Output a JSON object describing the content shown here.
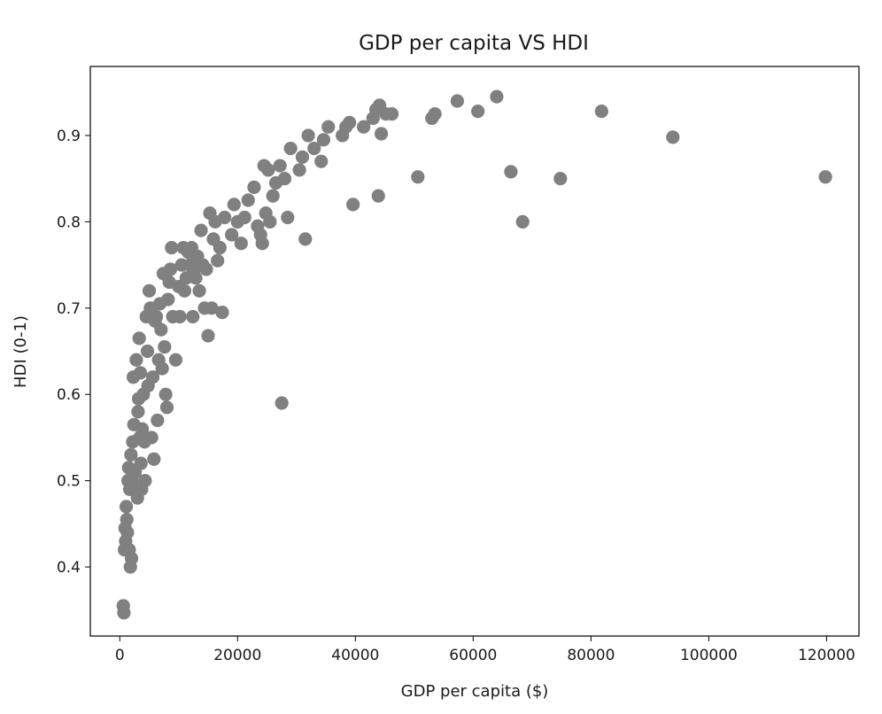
{
  "chart_data": {
    "type": "scatter",
    "title": "GDP per capita VS HDI",
    "xlabel": "GDP per capita ($)",
    "ylabel": "HDI (0-1)",
    "xlim": [
      -5000,
      125500
    ],
    "ylim": [
      0.32,
      0.98
    ],
    "xticks": [
      0,
      20000,
      40000,
      60000,
      80000,
      100000,
      120000
    ],
    "yticks": [
      0.4,
      0.5,
      0.6,
      0.7,
      0.8,
      0.9
    ],
    "marker_color": "#808080",
    "grid": false,
    "series": [
      {
        "points": [
          [
            600,
            0.355
          ],
          [
            700,
            0.347
          ],
          [
            800,
            0.42
          ],
          [
            900,
            0.445
          ],
          [
            1000,
            0.43
          ],
          [
            1100,
            0.47
          ],
          [
            1200,
            0.455
          ],
          [
            1300,
            0.44
          ],
          [
            1400,
            0.5
          ],
          [
            1500,
            0.515
          ],
          [
            1600,
            0.42
          ],
          [
            1700,
            0.49
          ],
          [
            1800,
            0.4
          ],
          [
            1900,
            0.53
          ],
          [
            2000,
            0.41
          ],
          [
            2100,
            0.5
          ],
          [
            2200,
            0.545
          ],
          [
            2300,
            0.62
          ],
          [
            2400,
            0.565
          ],
          [
            2600,
            0.51
          ],
          [
            2800,
            0.64
          ],
          [
            3000,
            0.48
          ],
          [
            3100,
            0.58
          ],
          [
            3200,
            0.595
          ],
          [
            3300,
            0.665
          ],
          [
            3400,
            0.55
          ],
          [
            3500,
            0.625
          ],
          [
            3600,
            0.52
          ],
          [
            3700,
            0.49
          ],
          [
            3800,
            0.56
          ],
          [
            4000,
            0.6
          ],
          [
            4200,
            0.545
          ],
          [
            4300,
            0.5
          ],
          [
            4500,
            0.69
          ],
          [
            4700,
            0.65
          ],
          [
            4800,
            0.61
          ],
          [
            5000,
            0.72
          ],
          [
            5200,
            0.7
          ],
          [
            5400,
            0.55
          ],
          [
            5600,
            0.62
          ],
          [
            5800,
            0.525
          ],
          [
            6000,
            0.685
          ],
          [
            6200,
            0.69
          ],
          [
            6400,
            0.57
          ],
          [
            6600,
            0.64
          ],
          [
            6800,
            0.705
          ],
          [
            7000,
            0.675
          ],
          [
            7200,
            0.63
          ],
          [
            7400,
            0.74
          ],
          [
            7600,
            0.655
          ],
          [
            7800,
            0.6
          ],
          [
            8000,
            0.585
          ],
          [
            8200,
            0.71
          ],
          [
            8400,
            0.73
          ],
          [
            8600,
            0.745
          ],
          [
            8800,
            0.77
          ],
          [
            9000,
            0.69
          ],
          [
            9500,
            0.64
          ],
          [
            10000,
            0.725
          ],
          [
            10200,
            0.69
          ],
          [
            10500,
            0.75
          ],
          [
            10800,
            0.77
          ],
          [
            11000,
            0.72
          ],
          [
            11300,
            0.735
          ],
          [
            11600,
            0.765
          ],
          [
            11900,
            0.75
          ],
          [
            12200,
            0.77
          ],
          [
            12400,
            0.69
          ],
          [
            12600,
            0.745
          ],
          [
            12900,
            0.735
          ],
          [
            13200,
            0.76
          ],
          [
            13500,
            0.72
          ],
          [
            13800,
            0.79
          ],
          [
            14100,
            0.75
          ],
          [
            14400,
            0.7
          ],
          [
            14700,
            0.745
          ],
          [
            15000,
            0.668
          ],
          [
            15300,
            0.81
          ],
          [
            15600,
            0.7
          ],
          [
            15900,
            0.78
          ],
          [
            16200,
            0.8
          ],
          [
            16600,
            0.755
          ],
          [
            17000,
            0.77
          ],
          [
            17400,
            0.695
          ],
          [
            17800,
            0.805
          ],
          [
            19000,
            0.785
          ],
          [
            19400,
            0.82
          ],
          [
            20000,
            0.8
          ],
          [
            20600,
            0.775
          ],
          [
            21200,
            0.805
          ],
          [
            21800,
            0.825
          ],
          [
            22800,
            0.84
          ],
          [
            23400,
            0.795
          ],
          [
            23900,
            0.785
          ],
          [
            24200,
            0.775
          ],
          [
            24500,
            0.865
          ],
          [
            24800,
            0.81
          ],
          [
            25200,
            0.86
          ],
          [
            25500,
            0.8
          ],
          [
            26000,
            0.83
          ],
          [
            26500,
            0.845
          ],
          [
            27200,
            0.865
          ],
          [
            27500,
            0.59
          ],
          [
            28000,
            0.85
          ],
          [
            28500,
            0.805
          ],
          [
            29000,
            0.885
          ],
          [
            30500,
            0.86
          ],
          [
            31000,
            0.875
          ],
          [
            31500,
            0.78
          ],
          [
            32000,
            0.9
          ],
          [
            33000,
            0.885
          ],
          [
            34200,
            0.87
          ],
          [
            34600,
            0.895
          ],
          [
            35400,
            0.91
          ],
          [
            37800,
            0.9
          ],
          [
            38400,
            0.91
          ],
          [
            39000,
            0.915
          ],
          [
            39600,
            0.82
          ],
          [
            41400,
            0.91
          ],
          [
            43000,
            0.92
          ],
          [
            43500,
            0.93
          ],
          [
            43900,
            0.83
          ],
          [
            44100,
            0.935
          ],
          [
            44400,
            0.902
          ],
          [
            45200,
            0.925
          ],
          [
            46200,
            0.925
          ],
          [
            50600,
            0.852
          ],
          [
            53000,
            0.92
          ],
          [
            53500,
            0.925
          ],
          [
            57300,
            0.94
          ],
          [
            60800,
            0.928
          ],
          [
            64000,
            0.945
          ],
          [
            66400,
            0.858
          ],
          [
            68400,
            0.8
          ],
          [
            74800,
            0.85
          ],
          [
            81800,
            0.928
          ],
          [
            93900,
            0.898
          ],
          [
            119800,
            0.852
          ]
        ]
      }
    ]
  }
}
